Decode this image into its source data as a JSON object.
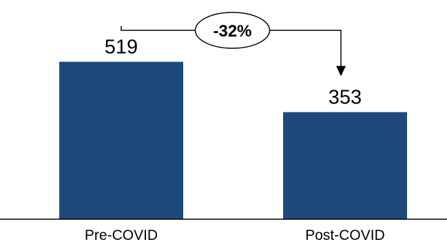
{
  "chart_data": {
    "type": "bar",
    "categories": [
      "Pre-COVID",
      "Post-COVID"
    ],
    "values": [
      519,
      353
    ],
    "value_labels": [
      "519",
      "353"
    ],
    "ylim": [
      0,
      700
    ],
    "grid": false,
    "legend": "none",
    "title": "",
    "xlabel": "",
    "ylabel": "",
    "bar_color": "#1F497D",
    "annotation": {
      "type": "change-arrow",
      "from": "Pre-COVID",
      "to": "Post-COVID",
      "label": "-32%"
    }
  }
}
